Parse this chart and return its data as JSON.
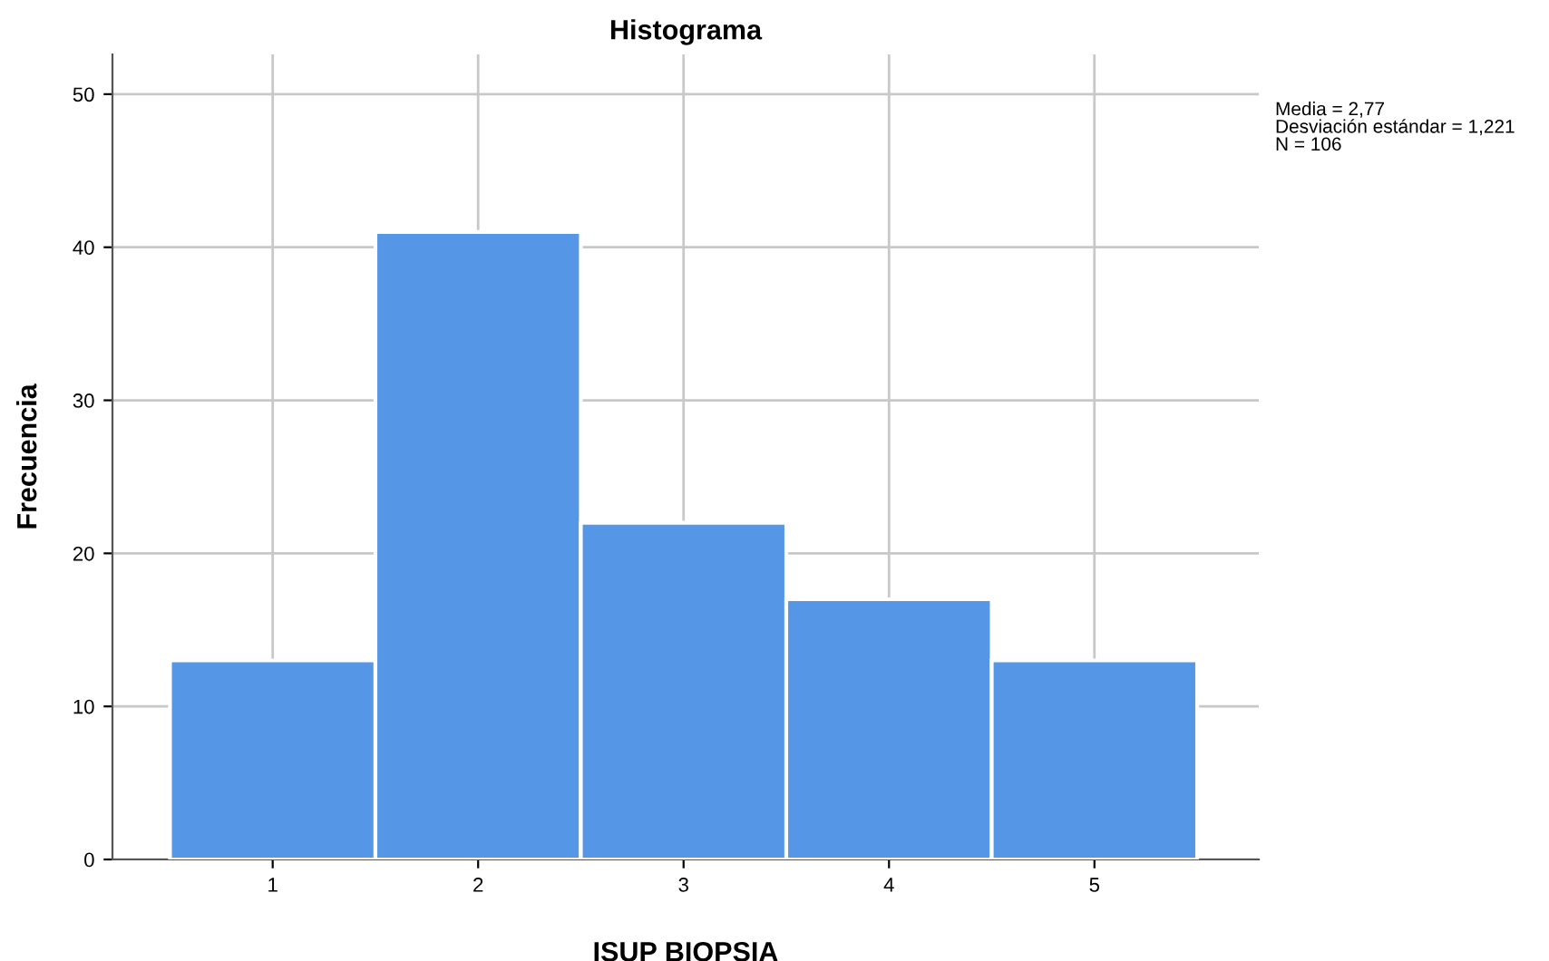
{
  "chart_data": {
    "type": "histogram",
    "title": "Histograma",
    "xlabel": "ISUP BIOPSIA",
    "ylabel": "Frecuencia",
    "bins": [
      0.5,
      1.5,
      2.5,
      3.5,
      4.5,
      5.5
    ],
    "values": [
      13,
      41,
      22,
      17,
      13
    ],
    "color": "#5596e6",
    "xlim": [
      0.22,
      5.8
    ],
    "xticks": [
      1,
      2,
      3,
      4,
      5
    ],
    "ylim": [
      0,
      52.6
    ],
    "yticks": [
      0,
      10,
      20,
      30,
      40,
      50
    ],
    "grid": true,
    "annotations": [
      "Media = 2,77\nDesviación estándar = 1,221\nN = 106"
    ]
  }
}
